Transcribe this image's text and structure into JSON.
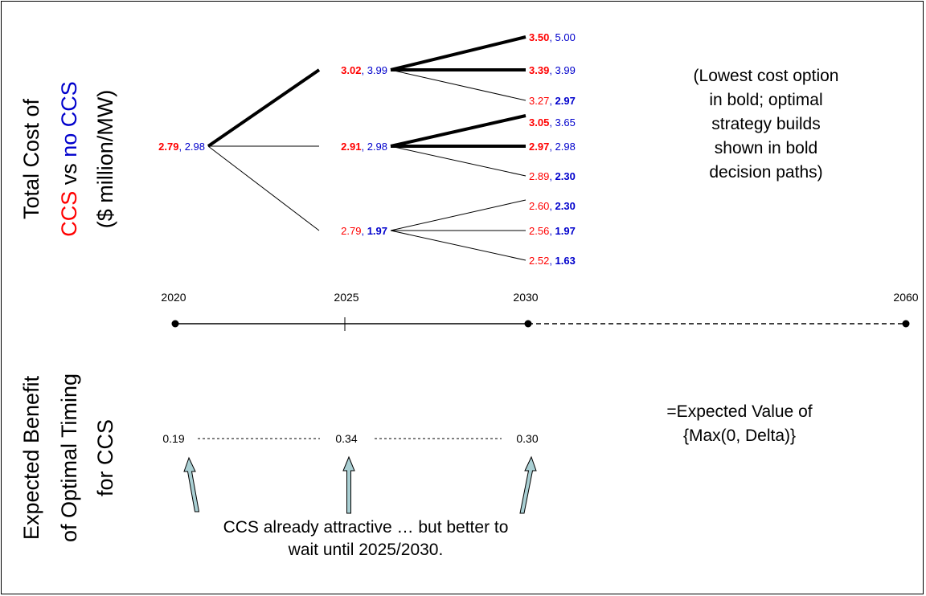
{
  "colors": {
    "ccs": "#ff0000",
    "noccs": "#0000cc",
    "ink": "#000000",
    "arrow_fill": "#a9cfd3"
  },
  "top_axis_title": {
    "line1": "Total Cost of",
    "ccs": "CCS",
    "vs": " vs ",
    "no_ccs": "no CCS",
    "line3": "($ million/MW)"
  },
  "bottom_axis_title": {
    "line1": "Expected Benefit",
    "line2": "of Optimal Timing",
    "line3": "for CCS"
  },
  "tree": {
    "root": {
      "ccs": "2.79",
      "noccs": "2.98",
      "bold": "ccs"
    },
    "level2": [
      {
        "ccs": "3.02",
        "noccs": "3.99",
        "bold": "ccs"
      },
      {
        "ccs": "2.91",
        "noccs": "2.98",
        "bold": "ccs"
      },
      {
        "ccs": "2.79",
        "noccs": "1.97",
        "bold": "noccs"
      }
    ],
    "level3": [
      {
        "ccs": "3.50",
        "noccs": "5.00",
        "bold": "ccs"
      },
      {
        "ccs": "3.39",
        "noccs": "3.99",
        "bold": "ccs"
      },
      {
        "ccs": "3.27",
        "noccs": "2.97",
        "bold": "noccs"
      },
      {
        "ccs": "3.05",
        "noccs": "3.65",
        "bold": "ccs"
      },
      {
        "ccs": "2.97",
        "noccs": "2.98",
        "bold": "ccs"
      },
      {
        "ccs": "2.89",
        "noccs": "2.30",
        "bold": "noccs"
      },
      {
        "ccs": "2.60",
        "noccs": "2.30",
        "bold": "noccs"
      },
      {
        "ccs": "2.56",
        "noccs": "1.97",
        "bold": "noccs"
      },
      {
        "ccs": "2.52",
        "noccs": "1.63",
        "bold": "noccs"
      }
    ],
    "separator": ", "
  },
  "timeline": {
    "years": [
      "2020",
      "2025",
      "2030",
      "2060"
    ]
  },
  "benefits": [
    "0.19",
    "0.34",
    "0.30"
  ],
  "notes": {
    "legend": [
      "(Lowest cost option",
      "in bold; optimal",
      "strategy builds",
      "shown in bold",
      "decision paths)"
    ],
    "expected_value": [
      "=Expected Value of",
      "{Max(0, Delta)}"
    ],
    "caption": [
      "CCS already attractive … but better to",
      "wait until 2025/2030."
    ]
  }
}
